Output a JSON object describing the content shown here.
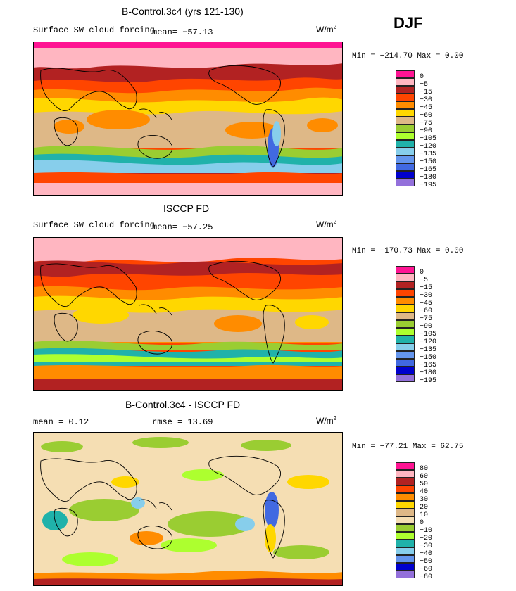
{
  "header": {
    "season": "DJF"
  },
  "units": {
    "base": "W/m",
    "exp": "2"
  },
  "panels": [
    {
      "title": "B-Control.3c4 (yrs 121-130)",
      "subtitle": "Surface SW cloud forcing",
      "stat_left": "mean= −57.13",
      "stat_right": "",
      "minmax": "Min = −214.70  Max =    0.00",
      "legend_colors": [
        "#ff1493",
        "#ffb6c1",
        "#b22222",
        "#ff4500",
        "#ff8c00",
        "#ffd700",
        "#deb887",
        "#9acd32",
        "#adff2f",
        "#20b2aa",
        "#87ceeb",
        "#6495ed",
        "#4169e1",
        "#0000cd",
        "#9370db"
      ],
      "legend_labels": [
        "0",
        "−5",
        "−15",
        "−30",
        "−45",
        "−60",
        "−75",
        "−90",
        "−105",
        "−120",
        "−135",
        "−150",
        "−165",
        "−180",
        "−195"
      ]
    },
    {
      "title": "ISCCP FD",
      "subtitle": "Surface SW cloud forcing",
      "stat_left": "mean= −57.25",
      "stat_right": "",
      "minmax": "Min = −170.73  Max =    0.00",
      "legend_colors": [
        "#ff1493",
        "#ffb6c1",
        "#b22222",
        "#ff4500",
        "#ff8c00",
        "#ffd700",
        "#deb887",
        "#9acd32",
        "#adff2f",
        "#20b2aa",
        "#87ceeb",
        "#6495ed",
        "#4169e1",
        "#0000cd",
        "#9370db"
      ],
      "legend_labels": [
        "0",
        "−5",
        "−15",
        "−30",
        "−45",
        "−60",
        "−75",
        "−90",
        "−105",
        "−120",
        "−135",
        "−150",
        "−165",
        "−180",
        "−195"
      ]
    },
    {
      "title": "B-Control.3c4 - ISCCP FD",
      "subtitle": "mean =    0.12",
      "stat_left": "",
      "stat_right": "rmse =   13.69",
      "minmax": "Min = −77.21  Max =   62.75",
      "legend_colors": [
        "#ff1493",
        "#ffb6c1",
        "#b22222",
        "#ff4500",
        "#ff8c00",
        "#ffd700",
        "#deb887",
        "#f5deb3",
        "#9acd32",
        "#adff2f",
        "#20b2aa",
        "#87ceeb",
        "#6495ed",
        "#0000cd",
        "#9370db"
      ],
      "legend_labels": [
        "80",
        "60",
        "50",
        "40",
        "30",
        "20",
        "10",
        "0",
        "−10",
        "−20",
        "−30",
        "−40",
        "−50",
        "−60",
        "−80"
      ]
    }
  ],
  "chart_data": [
    {
      "type": "heatmap",
      "title": "B-Control.3c4 (yrs 121-130)",
      "variable": "Surface SW cloud forcing",
      "mean": -57.13,
      "min": -214.7,
      "max": 0.0,
      "units": "W/m2",
      "contour_levels": [
        0,
        -5,
        -15,
        -30,
        -45,
        -60,
        -75,
        -90,
        -105,
        -120,
        -135,
        -150,
        -165,
        -180,
        -195
      ]
    },
    {
      "type": "heatmap",
      "title": "ISCCP FD",
      "variable": "Surface SW cloud forcing",
      "mean": -57.25,
      "min": -170.73,
      "max": 0.0,
      "units": "W/m2",
      "contour_levels": [
        0,
        -5,
        -15,
        -30,
        -45,
        -60,
        -75,
        -90,
        -105,
        -120,
        -135,
        -150,
        -165,
        -180,
        -195
      ]
    },
    {
      "type": "heatmap",
      "title": "B-Control.3c4 - ISCCP FD",
      "mean": 0.12,
      "rmse": 13.69,
      "min": -77.21,
      "max": 62.75,
      "units": "W/m2",
      "contour_levels": [
        80,
        60,
        50,
        40,
        30,
        20,
        10,
        0,
        -10,
        -20,
        -30,
        -40,
        -50,
        -60,
        -80
      ]
    }
  ]
}
